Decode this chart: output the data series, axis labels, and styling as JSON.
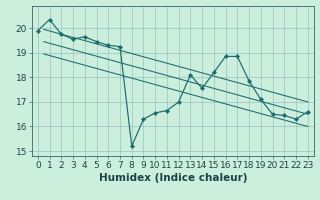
{
  "xlabel": "Humidex (Indice chaleur)",
  "background_color": "#cceedd",
  "line_color": "#1a6b6b",
  "xlim": [
    -0.5,
    23.5
  ],
  "ylim": [
    14.8,
    20.9
  ],
  "xticks": [
    0,
    1,
    2,
    3,
    4,
    5,
    6,
    7,
    8,
    9,
    10,
    11,
    12,
    13,
    14,
    15,
    16,
    17,
    18,
    19,
    20,
    21,
    22,
    23
  ],
  "yticks": [
    15,
    16,
    17,
    18,
    19,
    20
  ],
  "x_pts": [
    0,
    1,
    2,
    3,
    4,
    5,
    6,
    7,
    8,
    9,
    10,
    11,
    12,
    13,
    14,
    15,
    16,
    17,
    18,
    19,
    20,
    21,
    22,
    23
  ],
  "y_pts": [
    19.9,
    20.35,
    19.75,
    19.55,
    19.65,
    19.45,
    19.3,
    19.25,
    15.2,
    16.3,
    16.55,
    16.65,
    17.0,
    18.1,
    17.55,
    18.2,
    18.85,
    18.85,
    17.85,
    17.1,
    16.5,
    16.45,
    16.3,
    16.6
  ],
  "trend_lines": [
    {
      "x0": 0.5,
      "y0": 19.95,
      "x1": 23,
      "y1": 17.0
    },
    {
      "x0": 0.5,
      "y0": 19.45,
      "x1": 23,
      "y1": 16.5
    },
    {
      "x0": 0.5,
      "y0": 18.95,
      "x1": 23,
      "y1": 16.0
    }
  ],
  "font_size": 6.5,
  "xlabel_fontsize": 7.5
}
